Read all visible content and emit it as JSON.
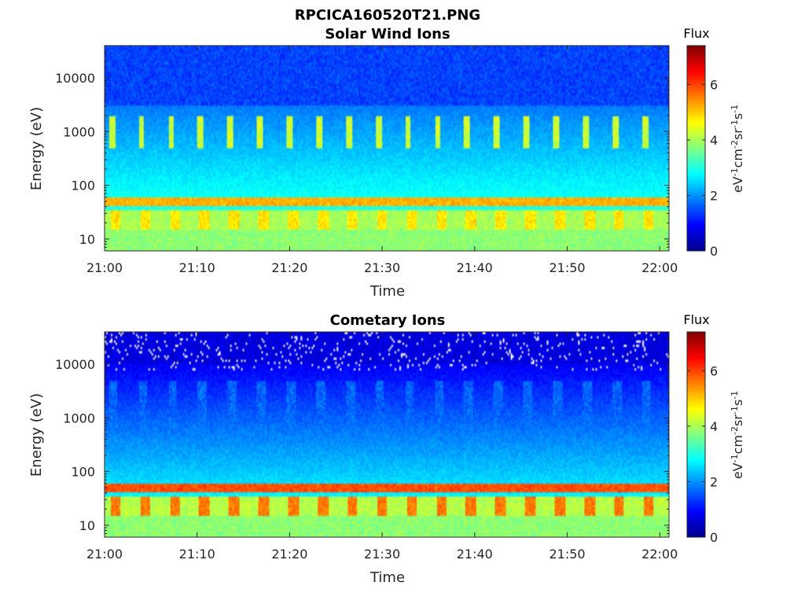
{
  "figure": {
    "title": "RPCICA160520T21.PNG"
  },
  "colormap": {
    "name": "jet",
    "stops": [
      "#00008f",
      "#0000ff",
      "#0080ff",
      "#00ffff",
      "#80ff80",
      "#ffff00",
      "#ff8000",
      "#ff0000",
      "#800000"
    ]
  },
  "chart_data": [
    {
      "type": "heatmap",
      "title": "Solar Wind Ions",
      "xlabel": "Time",
      "ylabel": "Energy (eV)",
      "x_range": [
        "21:00",
        "22:01"
      ],
      "y_scale": "log",
      "y_range": [
        6,
        40000
      ],
      "x_ticks": [
        "21:00",
        "21:10",
        "21:20",
        "21:30",
        "21:40",
        "21:50",
        "22:00"
      ],
      "y_ticks": [
        "10",
        "100",
        "1000",
        "10000"
      ],
      "colorbar": {
        "title": "Flux",
        "label": "eV-1cm-2sr-1s-1",
        "range": [
          0,
          7.4
        ],
        "ticks": [
          "0",
          "2",
          "4",
          "6"
        ]
      },
      "features": [
        {
          "energy_range_eV": [
            40,
            60
          ],
          "flux": 5.2,
          "description": "continuous band"
        },
        {
          "energy_range_eV": [
            15,
            35
          ],
          "flux": 4.6,
          "period_min": 3.2,
          "description": "periodic blocks"
        },
        {
          "energy_range_eV": [
            500,
            2000
          ],
          "flux": 4.0,
          "period_min": 3.2,
          "description": "periodic bursts"
        },
        {
          "energy_range_eV": [
            3000,
            40000
          ],
          "flux": 1.2,
          "description": "low background"
        }
      ]
    },
    {
      "type": "heatmap",
      "title": "Cometary Ions",
      "xlabel": "Time",
      "ylabel": "Energy (eV)",
      "x_range": [
        "21:00",
        "22:01"
      ],
      "y_scale": "log",
      "y_range": [
        6,
        40000
      ],
      "x_ticks": [
        "21:00",
        "21:10",
        "21:20",
        "21:30",
        "21:40",
        "21:50",
        "22:00"
      ],
      "y_ticks": [
        "10",
        "100",
        "1000",
        "10000"
      ],
      "colorbar": {
        "title": "Flux",
        "label": "eV-1cm-2sr-1s-1",
        "range": [
          0,
          7.4
        ],
        "ticks": [
          "0",
          "2",
          "4",
          "6"
        ]
      },
      "features": [
        {
          "energy_range_eV": [
            40,
            60
          ],
          "flux": 5.9,
          "description": "continuous band"
        },
        {
          "energy_range_eV": [
            15,
            35
          ],
          "flux": 5.4,
          "period_min": 3.2,
          "description": "periodic blocks"
        },
        {
          "energy_range_eV": [
            200,
            5000
          ],
          "flux": 2.0,
          "period_min": 3.2,
          "description": "periodic streaks"
        },
        {
          "energy_range_eV": [
            10000,
            40000
          ],
          "flux": 0.5,
          "description": "sparse, missing bins"
        }
      ]
    }
  ]
}
